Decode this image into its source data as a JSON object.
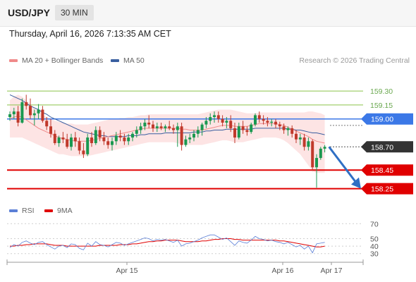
{
  "header": {
    "symbol": "USD/JPY",
    "timeframe": "30 MIN"
  },
  "datetime": "Thursday, April 16, 2026 7:13:35 AM CET",
  "legend": {
    "ma20_label": "MA 20 + Bollinger Bands",
    "ma50_label": "MA 50",
    "rsi_label": "RSI",
    "rsi_ma_label": "9MA",
    "credit": "Research © 2026 Trading Central"
  },
  "colors": {
    "ma20": "#f08a8a",
    "ma50": "#3a5fa0",
    "band_fill": "#fde4e4",
    "up": "#1a9850",
    "down": "#c0392b",
    "support": "#e00000",
    "pivot": "#3b78e7",
    "resistance": "#8bc34a",
    "current": "#333333",
    "rsi": "#5b7fd6",
    "rsi_ma": "#e00000"
  },
  "chart_data": [
    {
      "type": "candlestick",
      "ylim": [
        158.08,
        159.43
      ],
      "x_ticks": [
        "Apr 15",
        "Apr 16",
        "Apr 17"
      ],
      "levels": [
        {
          "label": "159.30",
          "value": 159.3,
          "kind": "resistance"
        },
        {
          "label": "159.15",
          "value": 159.15,
          "kind": "resistance"
        },
        {
          "label": "159.00",
          "value": 159.0,
          "kind": "pivot"
        },
        {
          "label": "158.70",
          "value": 158.7,
          "kind": "current"
        },
        {
          "label": "158.45",
          "value": 158.45,
          "kind": "support"
        },
        {
          "label": "158.25",
          "value": 158.25,
          "kind": "support"
        }
      ],
      "forecast": {
        "from": 158.7,
        "to": 158.25
      },
      "candles": [
        [
          159.02,
          159.08,
          158.98,
          159.05
        ],
        [
          159.05,
          159.12,
          159.0,
          159.08
        ],
        [
          159.08,
          159.14,
          158.92,
          158.96
        ],
        [
          158.96,
          159.22,
          158.95,
          159.18
        ],
        [
          159.18,
          159.26,
          159.1,
          159.14
        ],
        [
          159.14,
          159.22,
          159.0,
          159.04
        ],
        [
          159.04,
          159.1,
          158.93,
          159.06
        ],
        [
          159.06,
          159.16,
          159.0,
          159.1
        ],
        [
          159.1,
          159.14,
          158.96,
          158.98
        ],
        [
          158.98,
          159.02,
          158.88,
          158.92
        ],
        [
          158.92,
          159.0,
          158.8,
          158.84
        ],
        [
          158.84,
          158.88,
          158.72,
          158.74
        ],
        [
          158.74,
          158.82,
          158.7,
          158.8
        ],
        [
          158.8,
          158.86,
          158.74,
          158.78
        ],
        [
          158.78,
          158.84,
          158.68,
          158.7
        ],
        [
          158.7,
          158.84,
          158.66,
          158.8
        ],
        [
          158.8,
          158.86,
          158.7,
          158.76
        ],
        [
          158.76,
          158.8,
          158.62,
          158.66
        ],
        [
          158.66,
          158.74,
          158.58,
          158.62
        ],
        [
          158.62,
          158.84,
          158.6,
          158.8
        ],
        [
          158.8,
          158.86,
          158.7,
          158.74
        ],
        [
          158.74,
          158.92,
          158.72,
          158.88
        ],
        [
          158.88,
          158.92,
          158.76,
          158.8
        ],
        [
          158.8,
          158.86,
          158.72,
          158.76
        ],
        [
          158.76,
          158.8,
          158.68,
          158.72
        ],
        [
          158.72,
          158.8,
          158.66,
          158.76
        ],
        [
          158.76,
          158.86,
          158.72,
          158.82
        ],
        [
          158.82,
          158.88,
          158.76,
          158.8
        ],
        [
          158.8,
          158.84,
          158.72,
          158.76
        ],
        [
          158.76,
          158.84,
          158.72,
          158.8
        ],
        [
          158.8,
          158.86,
          158.76,
          158.84
        ],
        [
          158.84,
          158.92,
          158.8,
          158.88
        ],
        [
          158.88,
          158.96,
          158.84,
          158.92
        ],
        [
          158.92,
          159.0,
          158.88,
          158.96
        ],
        [
          158.96,
          159.04,
          158.9,
          158.94
        ],
        [
          158.94,
          158.98,
          158.86,
          158.9
        ],
        [
          158.9,
          158.96,
          158.86,
          158.92
        ],
        [
          158.92,
          158.96,
          158.88,
          158.9
        ],
        [
          158.9,
          158.94,
          158.86,
          158.92
        ],
        [
          158.92,
          158.98,
          158.88,
          158.9
        ],
        [
          158.9,
          158.94,
          158.84,
          158.88
        ],
        [
          158.88,
          158.96,
          158.7,
          158.92
        ],
        [
          158.92,
          158.96,
          158.66,
          158.72
        ],
        [
          158.72,
          158.82,
          158.7,
          158.78
        ],
        [
          158.78,
          158.84,
          158.74,
          158.8
        ],
        [
          158.8,
          158.88,
          158.76,
          158.84
        ],
        [
          158.84,
          158.92,
          158.8,
          158.88
        ],
        [
          158.88,
          158.96,
          158.82,
          158.94
        ],
        [
          158.94,
          159.02,
          158.9,
          158.98
        ],
        [
          158.98,
          159.06,
          158.94,
          159.02
        ],
        [
          159.02,
          159.08,
          158.96,
          159.04
        ],
        [
          159.04,
          159.08,
          158.96,
          159.0
        ],
        [
          159.0,
          159.04,
          158.92,
          158.96
        ],
        [
          158.96,
          159.02,
          158.9,
          158.98
        ],
        [
          158.98,
          159.04,
          158.86,
          158.9
        ],
        [
          158.9,
          158.96,
          158.74,
          158.8
        ],
        [
          158.8,
          158.96,
          158.78,
          158.92
        ],
        [
          158.92,
          158.98,
          158.84,
          158.88
        ],
        [
          158.88,
          158.92,
          158.82,
          158.86
        ],
        [
          158.86,
          158.96,
          158.84,
          158.94
        ],
        [
          158.94,
          159.06,
          158.92,
          159.04
        ],
        [
          159.04,
          159.08,
          158.96,
          159.0
        ],
        [
          159.0,
          159.04,
          158.94,
          158.98
        ],
        [
          158.98,
          159.02,
          158.92,
          158.96
        ],
        [
          158.96,
          159.0,
          158.92,
          158.97
        ],
        [
          158.97,
          159.0,
          158.9,
          158.94
        ],
        [
          158.94,
          158.97,
          158.88,
          158.92
        ],
        [
          158.92,
          158.95,
          158.84,
          158.88
        ],
        [
          158.88,
          158.92,
          158.82,
          158.9
        ],
        [
          158.9,
          158.93,
          158.8,
          158.84
        ],
        [
          158.84,
          158.88,
          158.74,
          158.78
        ],
        [
          158.78,
          158.84,
          158.72,
          158.8
        ],
        [
          158.8,
          158.84,
          158.66,
          158.7
        ],
        [
          158.7,
          158.8,
          158.66,
          158.76
        ],
        [
          158.76,
          158.78,
          158.44,
          158.48
        ],
        [
          158.48,
          158.62,
          158.26,
          158.58
        ],
        [
          158.58,
          158.7,
          158.56,
          158.68
        ],
        [
          158.68,
          158.72,
          158.64,
          158.7
        ]
      ],
      "ma20": [
        159.0,
        159.02,
        159.03,
        159.02,
        158.99,
        158.96,
        158.93,
        158.9,
        158.88,
        158.86,
        158.84,
        158.82,
        158.8,
        158.79,
        158.78,
        158.77,
        158.76,
        158.76,
        158.76,
        158.76,
        158.77,
        158.78,
        158.79,
        158.8,
        158.81,
        158.82,
        158.83,
        158.84,
        158.85,
        158.86,
        158.87,
        158.88,
        158.89,
        158.9,
        158.9,
        158.9,
        158.9,
        158.9,
        158.9,
        158.9,
        158.9,
        158.9,
        158.89,
        158.89,
        158.88,
        158.88,
        158.88,
        158.88,
        158.89,
        158.9,
        158.91,
        158.92,
        158.93,
        158.93,
        158.93,
        158.92,
        158.92,
        158.92,
        158.92,
        158.93,
        158.94,
        158.95,
        158.95,
        158.95,
        158.95,
        158.95,
        158.94,
        158.93,
        158.91,
        158.89,
        158.87,
        158.85,
        158.83,
        158.81,
        158.78,
        158.76,
        158.75,
        158.74
      ],
      "ma50": [
        159.26,
        159.24,
        159.22,
        159.2,
        159.17,
        159.14,
        159.12,
        159.1,
        159.07,
        159.05,
        159.02,
        159.0,
        158.98,
        158.96,
        158.94,
        158.92,
        158.9,
        158.88,
        158.86,
        158.85,
        158.84,
        158.83,
        158.82,
        158.82,
        158.81,
        158.81,
        158.81,
        158.81,
        158.81,
        158.82,
        158.82,
        158.82,
        158.83,
        158.83,
        158.84,
        158.84,
        158.84,
        158.84,
        158.85,
        158.85,
        158.85,
        158.85,
        158.85,
        158.85,
        158.85,
        158.86,
        158.86,
        158.86,
        158.87,
        158.87,
        158.88,
        158.88,
        158.88,
        158.89,
        158.89,
        158.89,
        158.89,
        158.89,
        158.89,
        158.89,
        158.9,
        158.9,
        158.9,
        158.9,
        158.9,
        158.9,
        158.9,
        158.9,
        158.89,
        158.89,
        158.88,
        158.88,
        158.87,
        158.86,
        158.85,
        158.85,
        158.84,
        158.83
      ],
      "bb_upper": [
        159.2,
        159.24,
        159.26,
        159.24,
        159.2,
        159.16,
        159.12,
        159.08,
        159.04,
        159.02,
        159.0,
        158.98,
        158.97,
        158.96,
        158.95,
        158.95,
        158.94,
        158.94,
        158.94,
        158.94,
        158.95,
        158.96,
        158.97,
        158.98,
        158.99,
        159.0,
        159.0,
        159.01,
        159.01,
        159.02,
        159.02,
        159.03,
        159.04,
        159.04,
        159.05,
        159.05,
        159.05,
        159.05,
        159.05,
        159.05,
        159.05,
        159.05,
        159.05,
        159.05,
        159.05,
        159.05,
        159.05,
        159.06,
        159.07,
        159.08,
        159.09,
        159.1,
        159.1,
        159.1,
        159.1,
        159.09,
        159.08,
        159.07,
        159.06,
        159.06,
        159.06,
        159.07,
        159.07,
        159.07,
        159.07,
        159.07,
        159.07,
        159.07,
        159.07,
        159.07,
        159.07,
        159.07,
        159.07,
        159.08,
        159.08,
        159.07,
        159.06,
        159.04
      ],
      "bb_lower": [
        158.8,
        158.8,
        158.8,
        158.8,
        158.78,
        158.76,
        158.74,
        158.72,
        158.7,
        158.68,
        158.66,
        158.64,
        158.62,
        158.62,
        158.61,
        158.6,
        158.6,
        158.6,
        158.6,
        158.6,
        158.61,
        158.62,
        158.63,
        158.64,
        158.65,
        158.66,
        158.67,
        158.68,
        158.69,
        158.7,
        158.71,
        158.72,
        158.73,
        158.74,
        158.75,
        158.75,
        158.75,
        158.75,
        158.75,
        158.75,
        158.75,
        158.74,
        158.73,
        158.72,
        158.72,
        158.72,
        158.72,
        158.72,
        158.73,
        158.74,
        158.75,
        158.76,
        158.77,
        158.77,
        158.76,
        158.75,
        158.75,
        158.75,
        158.76,
        158.77,
        158.78,
        158.79,
        158.8,
        158.8,
        158.8,
        158.8,
        158.79,
        158.77,
        158.74,
        158.7,
        158.66,
        158.62,
        158.56,
        158.5,
        158.44,
        158.42,
        158.42,
        158.42
      ]
    },
    {
      "type": "line",
      "ylim": [
        25,
        75
      ],
      "y_ticks": [
        70,
        50,
        40,
        30
      ],
      "series": [
        {
          "name": "RSI",
          "values": [
            38,
            42,
            40,
            45,
            47,
            44,
            42,
            45,
            46,
            42,
            39,
            36,
            40,
            41,
            38,
            43,
            42,
            37,
            35,
            44,
            40,
            46,
            42,
            41,
            39,
            42,
            45,
            44,
            41,
            43,
            45,
            47,
            49,
            51,
            50,
            47,
            49,
            48,
            49,
            47,
            45,
            48,
            40,
            43,
            44,
            46,
            48,
            51,
            53,
            55,
            55,
            52,
            49,
            51,
            46,
            41,
            47,
            45,
            44,
            48,
            53,
            50,
            49,
            47,
            48,
            46,
            45,
            43,
            45,
            42,
            39,
            41,
            36,
            40,
            31,
            43,
            44,
            45
          ]
        },
        {
          "name": "9MA",
          "values": [
            40,
            40,
            41,
            41,
            42,
            42,
            43,
            43,
            43,
            43,
            42,
            41,
            41,
            41,
            40,
            40,
            40,
            40,
            40,
            40,
            40,
            40,
            41,
            41,
            41,
            41,
            41,
            42,
            42,
            42,
            43,
            43,
            44,
            45,
            46,
            46,
            47,
            47,
            48,
            48,
            48,
            48,
            47,
            46,
            46,
            46,
            46,
            47,
            47,
            48,
            49,
            49,
            50,
            50,
            50,
            49,
            49,
            48,
            48,
            48,
            48,
            48,
            48,
            48,
            48,
            48,
            47,
            47,
            46,
            45,
            44,
            43,
            42,
            41,
            40,
            39,
            39,
            40
          ]
        }
      ]
    }
  ]
}
